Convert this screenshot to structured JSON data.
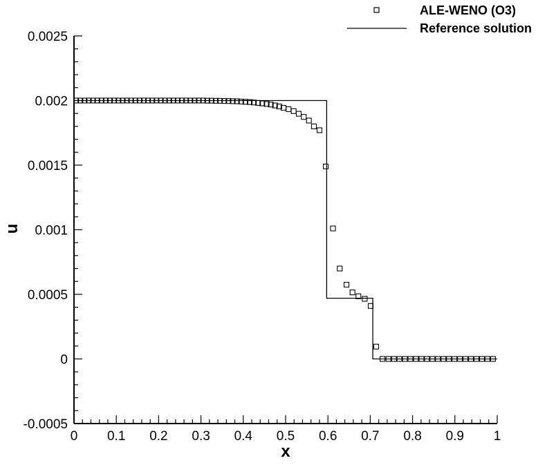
{
  "chart_data": {
    "type": "line",
    "title": "",
    "xlabel": "x",
    "ylabel": "u",
    "xlim": [
      0,
      1
    ],
    "ylim": [
      -0.0005,
      0.0025
    ],
    "x_ticks": [
      "0",
      "0.1",
      "0.2",
      "0.3",
      "0.4",
      "0.5",
      "0.6",
      "0.7",
      "0.8",
      "0.9",
      "1"
    ],
    "y_ticks": [
      "-0.0005",
      "0",
      "0.0005",
      "0.001",
      "0.0015",
      "0.002",
      "0.0025"
    ],
    "legend_position": "top-right",
    "grid": false,
    "series": [
      {
        "name": "ALE-WENO (O3)",
        "style": "markers-square",
        "x": [
          0.005,
          0.015,
          0.025,
          0.035,
          0.045,
          0.055,
          0.065,
          0.075,
          0.085,
          0.095,
          0.105,
          0.115,
          0.125,
          0.135,
          0.145,
          0.155,
          0.165,
          0.175,
          0.185,
          0.195,
          0.205,
          0.215,
          0.225,
          0.235,
          0.245,
          0.255,
          0.265,
          0.275,
          0.285,
          0.295,
          0.305,
          0.315,
          0.325,
          0.335,
          0.345,
          0.355,
          0.365,
          0.375,
          0.385,
          0.395,
          0.405,
          0.415,
          0.425,
          0.435,
          0.445,
          0.455,
          0.465,
          0.475,
          0.485,
          0.495,
          0.507,
          0.519,
          0.531,
          0.543,
          0.555,
          0.567,
          0.58,
          0.595,
          0.612,
          0.628,
          0.644,
          0.658,
          0.672,
          0.687,
          0.701,
          0.714,
          0.729,
          0.743,
          0.756,
          0.769,
          0.782,
          0.795,
          0.808,
          0.821,
          0.834,
          0.847,
          0.86,
          0.873,
          0.886,
          0.899,
          0.912,
          0.925,
          0.938,
          0.951,
          0.964,
          0.977,
          0.99
        ],
        "y": [
          0.002,
          0.002,
          0.002,
          0.002,
          0.002,
          0.002,
          0.002,
          0.002,
          0.002,
          0.002,
          0.002,
          0.002,
          0.002,
          0.002,
          0.002,
          0.002,
          0.002,
          0.002,
          0.002,
          0.002,
          0.002,
          0.002,
          0.002,
          0.002,
          0.002,
          0.002,
          0.002,
          0.002,
          0.002,
          0.002,
          0.002,
          0.001999,
          0.001999,
          0.001998,
          0.001998,
          0.001997,
          0.001996,
          0.001995,
          0.001994,
          0.001992,
          0.00199,
          0.001988,
          0.001985,
          0.001982,
          0.001978,
          0.001974,
          0.001969,
          0.001962,
          0.001954,
          0.001944,
          0.001933,
          0.001918,
          0.001898,
          0.001873,
          0.001845,
          0.0018,
          0.00177,
          0.00149,
          0.00101,
          0.0007,
          0.000575,
          0.000515,
          0.000485,
          0.000465,
          0.00041,
          9.5e-05,
          0.0,
          0.0,
          0.0,
          0.0,
          0.0,
          0.0,
          0.0,
          0.0,
          0.0,
          0.0,
          0.0,
          0.0,
          0.0,
          0.0,
          0.0,
          0.0,
          0.0,
          0.0,
          0.0,
          0.0,
          0.0
        ]
      },
      {
        "name": "Reference solution",
        "style": "solid-line",
        "x": [
          0.0,
          0.597,
          0.597,
          0.706,
          0.706,
          1.0
        ],
        "y": [
          0.002,
          0.002,
          0.00047,
          0.00047,
          0.0,
          0.0
        ]
      }
    ]
  },
  "colors": {
    "axis": "#000000",
    "series": "#000000",
    "background": "#ffffff"
  }
}
